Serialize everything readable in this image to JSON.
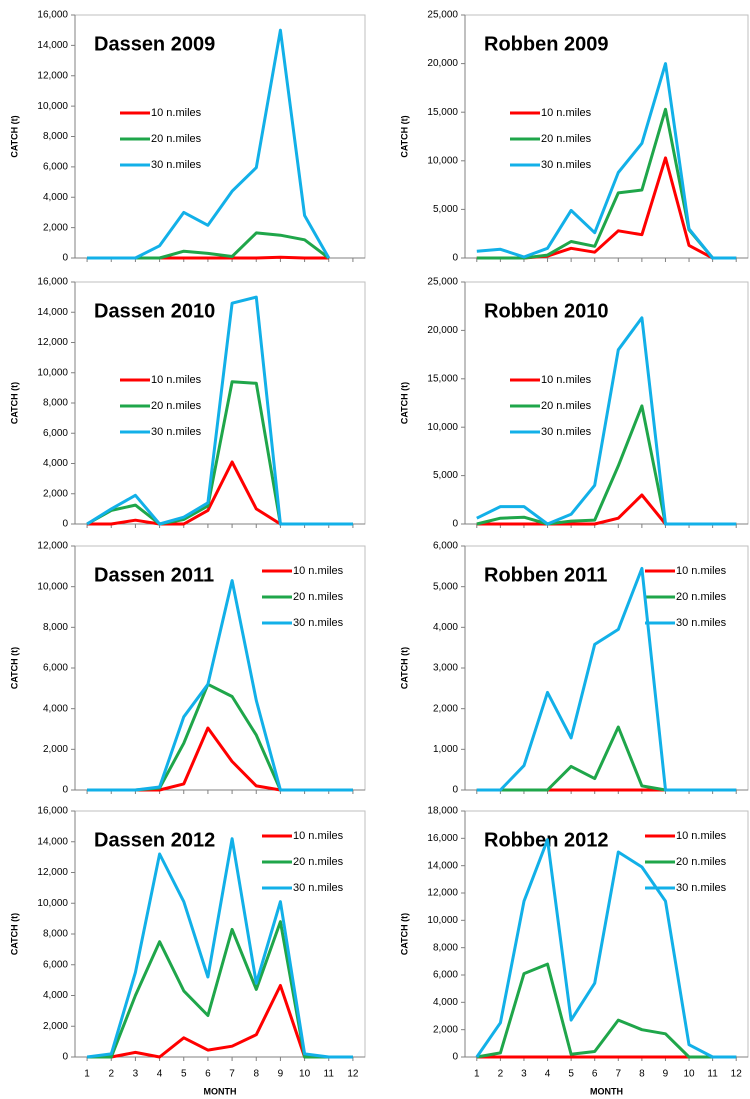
{
  "chart_data": [
    {
      "type": "line",
      "title": "Dassen 2009",
      "ylabel": "CATCH (t)",
      "x": [
        1,
        2,
        3,
        4,
        5,
        6,
        7,
        8,
        9,
        10,
        11,
        12
      ],
      "xlim": [
        0.5,
        12.5
      ],
      "xticks": [
        1,
        2,
        3,
        4,
        5,
        6,
        7,
        8,
        9,
        10,
        11,
        12
      ],
      "xtick_labels": false,
      "ylim": [
        0,
        16000
      ],
      "yticks": [
        0,
        {
          "value": 2000,
          "label": "2,000"
        },
        {
          "value": 4000,
          "label": "4,000"
        },
        {
          "value": 6000,
          "label": "6,000"
        },
        {
          "value": 8000,
          "label": "8,000"
        },
        {
          "value": 10000,
          "label": "10,000"
        },
        {
          "value": 12000,
          "label": "12,000"
        },
        {
          "value": 14000,
          "label": "14,000"
        },
        {
          "value": 16000,
          "label": "16,000"
        }
      ],
      "legend": "center-left",
      "series": [
        {
          "name": "10 n.miles",
          "color": "#ff0000",
          "values": [
            0,
            0,
            0,
            0,
            0,
            0,
            0,
            0,
            50,
            0,
            0,
            null
          ]
        },
        {
          "name": "20 n.miles",
          "color": "#1fa64a",
          "values": [
            0,
            0,
            0,
            0,
            450,
            300,
            100,
            1650,
            1500,
            1200,
            0,
            null
          ]
        },
        {
          "name": "30 n.miles",
          "color": "#12b0e8",
          "values": [
            0,
            0,
            0,
            800,
            3000,
            2150,
            4400,
            5950,
            15000,
            2800,
            0,
            null
          ]
        }
      ]
    },
    {
      "type": "line",
      "title": "Robben 2009",
      "ylabel": "CATCH (t)",
      "x": [
        1,
        2,
        3,
        4,
        5,
        6,
        7,
        8,
        9,
        10,
        11,
        12
      ],
      "xlim": [
        0.5,
        12.5
      ],
      "xticks": [
        1,
        2,
        3,
        4,
        5,
        6,
        7,
        8,
        9,
        10,
        11,
        12
      ],
      "xtick_labels": false,
      "ylim": [
        0,
        25000
      ],
      "yticks": [
        0,
        {
          "value": 5000,
          "label": "5,000"
        },
        {
          "value": 10000,
          "label": "10,000"
        },
        {
          "value": 15000,
          "label": "15,000"
        },
        {
          "value": 20000,
          "label": "20,000"
        },
        {
          "value": 25000,
          "label": "25,000"
        }
      ],
      "legend": "center-left",
      "series": [
        {
          "name": "10 n.miles",
          "color": "#ff0000",
          "values": [
            0,
            0,
            0,
            200,
            1000,
            600,
            2800,
            2400,
            10300,
            1300,
            0,
            0
          ]
        },
        {
          "name": "20 n.miles",
          "color": "#1fa64a",
          "values": [
            0,
            0,
            0,
            300,
            1700,
            1200,
            6700,
            7000,
            15300,
            2900,
            0,
            0
          ]
        },
        {
          "name": "30 n.miles",
          "color": "#12b0e8",
          "values": [
            700,
            900,
            100,
            1000,
            4900,
            2600,
            8800,
            11800,
            20000,
            3000,
            0,
            0
          ]
        }
      ]
    },
    {
      "type": "line",
      "title": "Dassen 2010",
      "ylabel": "CATCH (t)",
      "x": [
        1,
        2,
        3,
        4,
        5,
        6,
        7,
        8,
        9,
        10,
        11,
        12
      ],
      "xlim": [
        0.5,
        12.5
      ],
      "xticks": [
        1,
        2,
        3,
        4,
        5,
        6,
        7,
        8,
        9,
        10,
        11,
        12
      ],
      "xtick_labels": false,
      "ylim": [
        0,
        16000
      ],
      "yticks": [
        0,
        {
          "value": 2000,
          "label": "2,000"
        },
        {
          "value": 4000,
          "label": "4,000"
        },
        {
          "value": 6000,
          "label": "6,000"
        },
        {
          "value": 8000,
          "label": "8,000"
        },
        {
          "value": 10000,
          "label": "10,000"
        },
        {
          "value": 12000,
          "label": "12,000"
        },
        {
          "value": 14000,
          "label": "14,000"
        },
        {
          "value": 16000,
          "label": "16,000"
        }
      ],
      "legend": "center-left",
      "series": [
        {
          "name": "10 n.miles",
          "color": "#ff0000",
          "values": [
            0,
            0,
            250,
            0,
            0,
            900,
            4100,
            1000,
            0,
            0,
            0,
            0
          ]
        },
        {
          "name": "20 n.miles",
          "color": "#1fa64a",
          "values": [
            0,
            900,
            1250,
            0,
            300,
            1200,
            9400,
            9300,
            0,
            0,
            0,
            0
          ]
        },
        {
          "name": "30 n.miles",
          "color": "#12b0e8",
          "values": [
            0,
            1000,
            1900,
            0,
            450,
            1400,
            14600,
            15000,
            0,
            0,
            0,
            0
          ]
        }
      ]
    },
    {
      "type": "line",
      "title": "Robben 2010",
      "ylabel": "CATCH (t)",
      "x": [
        1,
        2,
        3,
        4,
        5,
        6,
        7,
        8,
        9,
        10,
        11,
        12
      ],
      "xlim": [
        0.5,
        12.5
      ],
      "xticks": [
        1,
        2,
        3,
        4,
        5,
        6,
        7,
        8,
        9,
        10,
        11,
        12
      ],
      "xtick_labels": false,
      "ylim": [
        0,
        25000
      ],
      "yticks": [
        0,
        {
          "value": 5000,
          "label": "5,000"
        },
        {
          "value": 10000,
          "label": "10,000"
        },
        {
          "value": 15000,
          "label": "15,000"
        },
        {
          "value": 20000,
          "label": "20,000"
        },
        {
          "value": 25000,
          "label": "25,000"
        }
      ],
      "legend": "center-left",
      "series": [
        {
          "name": "10 n.miles",
          "color": "#ff0000",
          "values": [
            0,
            0,
            0,
            0,
            0,
            0,
            600,
            3000,
            0,
            0,
            0,
            0
          ]
        },
        {
          "name": "20 n.miles",
          "color": "#1fa64a",
          "values": [
            0,
            600,
            700,
            0,
            300,
            400,
            6000,
            12200,
            0,
            0,
            0,
            0
          ]
        },
        {
          "name": "30 n.miles",
          "color": "#12b0e8",
          "values": [
            600,
            1800,
            1800,
            0,
            1000,
            4000,
            18000,
            21300,
            0,
            0,
            0,
            0
          ]
        }
      ]
    },
    {
      "type": "line",
      "title": "Dassen 2011",
      "ylabel": "CATCH (t)",
      "x": [
        1,
        2,
        3,
        4,
        5,
        6,
        7,
        8,
        9,
        10,
        11,
        12
      ],
      "xlim": [
        0.5,
        12.5
      ],
      "xticks": [
        1,
        2,
        3,
        4,
        5,
        6,
        7,
        8,
        9,
        10,
        11,
        12
      ],
      "xtick_labels": false,
      "ylim": [
        0,
        12000
      ],
      "yticks": [
        0,
        {
          "value": 2000,
          "label": "2,000"
        },
        {
          "value": 4000,
          "label": "4,000"
        },
        {
          "value": 6000,
          "label": "6,000"
        },
        {
          "value": 8000,
          "label": "8,000"
        },
        {
          "value": 10000,
          "label": "10,000"
        },
        {
          "value": 12000,
          "label": "12,000"
        }
      ],
      "legend": "upper-right",
      "series": [
        {
          "name": "10 n.miles",
          "color": "#ff0000",
          "values": [
            0,
            0,
            0,
            0,
            300,
            3050,
            1400,
            200,
            0,
            0,
            0,
            0
          ]
        },
        {
          "name": "20 n.miles",
          "color": "#1fa64a",
          "values": [
            0,
            0,
            0,
            100,
            2300,
            5200,
            4600,
            2700,
            0,
            0,
            0,
            0
          ]
        },
        {
          "name": "30 n.miles",
          "color": "#12b0e8",
          "values": [
            0,
            0,
            0,
            150,
            3600,
            5200,
            10300,
            4400,
            0,
            0,
            0,
            0
          ]
        }
      ]
    },
    {
      "type": "line",
      "title": "Robben 2011",
      "ylabel": "CATCH (t)",
      "x": [
        1,
        2,
        3,
        4,
        5,
        6,
        7,
        8,
        9,
        10,
        11,
        12
      ],
      "xlim": [
        0.5,
        12.5
      ],
      "xticks": [
        1,
        2,
        3,
        4,
        5,
        6,
        7,
        8,
        9,
        10,
        11,
        12
      ],
      "xtick_labels": false,
      "ylim": [
        0,
        6000
      ],
      "yticks": [
        0,
        {
          "value": 1000,
          "label": "1,000"
        },
        {
          "value": 2000,
          "label": "2,000"
        },
        {
          "value": 3000,
          "label": "3,000"
        },
        {
          "value": 4000,
          "label": "4,000"
        },
        {
          "value": 5000,
          "label": "5,000"
        },
        {
          "value": 6000,
          "label": "6,000"
        }
      ],
      "legend": "upper-right",
      "series": [
        {
          "name": "10 n.miles",
          "color": "#ff0000",
          "values": [
            0,
            0,
            0,
            0,
            0,
            0,
            0,
            0,
            0,
            0,
            0,
            0
          ]
        },
        {
          "name": "20 n.miles",
          "color": "#1fa64a",
          "values": [
            0,
            0,
            0,
            0,
            580,
            280,
            1550,
            100,
            0,
            0,
            0,
            0
          ]
        },
        {
          "name": "30 n.miles",
          "color": "#12b0e8",
          "values": [
            0,
            0,
            600,
            2400,
            1280,
            3580,
            3950,
            5450,
            0,
            0,
            0,
            0
          ]
        }
      ]
    },
    {
      "type": "line",
      "title": "Dassen 2012",
      "ylabel": "CATCH (t)",
      "xlabel": "MONTH",
      "x": [
        1,
        2,
        3,
        4,
        5,
        6,
        7,
        8,
        9,
        10,
        11,
        12
      ],
      "xlim": [
        0.5,
        12.5
      ],
      "xticks": [
        1,
        2,
        3,
        4,
        5,
        6,
        7,
        8,
        9,
        10,
        11,
        12
      ],
      "xtick_labels": true,
      "ylim": [
        0,
        16000
      ],
      "yticks": [
        0,
        {
          "value": 2000,
          "label": "2,000"
        },
        {
          "value": 4000,
          "label": "4,000"
        },
        {
          "value": 6000,
          "label": "6,000"
        },
        {
          "value": 8000,
          "label": "8,000"
        },
        {
          "value": 10000,
          "label": "10,000"
        },
        {
          "value": 12000,
          "label": "12,000"
        },
        {
          "value": 14000,
          "label": "14,000"
        },
        {
          "value": 16000,
          "label": "16,000"
        }
      ],
      "legend": "upper-right",
      "series": [
        {
          "name": "10 n.miles",
          "color": "#ff0000",
          "values": [
            0,
            0,
            300,
            0,
            1250,
            450,
            700,
            1450,
            4650,
            0,
            0,
            0
          ]
        },
        {
          "name": "20 n.miles",
          "color": "#1fa64a",
          "values": [
            0,
            0,
            4000,
            7500,
            4300,
            2700,
            8300,
            4400,
            8800,
            0,
            0,
            0
          ]
        },
        {
          "name": "30 n.miles",
          "color": "#12b0e8",
          "values": [
            0,
            200,
            5500,
            13200,
            10100,
            5200,
            14200,
            4800,
            10100,
            200,
            0,
            0
          ]
        }
      ]
    },
    {
      "type": "line",
      "title": "Robben 2012",
      "ylabel": "CATCH (t)",
      "xlabel": "MONTH",
      "x": [
        1,
        2,
        3,
        4,
        5,
        6,
        7,
        8,
        9,
        10,
        11,
        12
      ],
      "xlim": [
        0.5,
        12.5
      ],
      "xticks": [
        1,
        2,
        3,
        4,
        5,
        6,
        7,
        8,
        9,
        10,
        11,
        12
      ],
      "xtick_labels": true,
      "ylim": [
        0,
        18000
      ],
      "yticks": [
        0,
        {
          "value": 2000,
          "label": "2,000"
        },
        {
          "value": 4000,
          "label": "4,000"
        },
        {
          "value": 6000,
          "label": "6,000"
        },
        {
          "value": 8000,
          "label": "8,000"
        },
        {
          "value": 10000,
          "label": "10,000"
        },
        {
          "value": 12000,
          "label": "12,000"
        },
        {
          "value": 14000,
          "label": "14,000"
        },
        {
          "value": 16000,
          "label": "16,000"
        },
        {
          "value": 18000,
          "label": "18,000"
        }
      ],
      "legend": "upper-right",
      "series": [
        {
          "name": "10 n.miles",
          "color": "#ff0000",
          "values": [
            0,
            0,
            0,
            0,
            0,
            0,
            0,
            0,
            0,
            0,
            0,
            0
          ]
        },
        {
          "name": "20 n.miles",
          "color": "#1fa64a",
          "values": [
            0,
            300,
            6100,
            6800,
            200,
            400,
            2700,
            2000,
            1700,
            0,
            0,
            0
          ]
        },
        {
          "name": "30 n.miles",
          "color": "#12b0e8",
          "values": [
            0,
            2500,
            11400,
            15900,
            2700,
            5400,
            15000,
            13900,
            11400,
            900,
            0,
            0
          ]
        }
      ]
    }
  ]
}
